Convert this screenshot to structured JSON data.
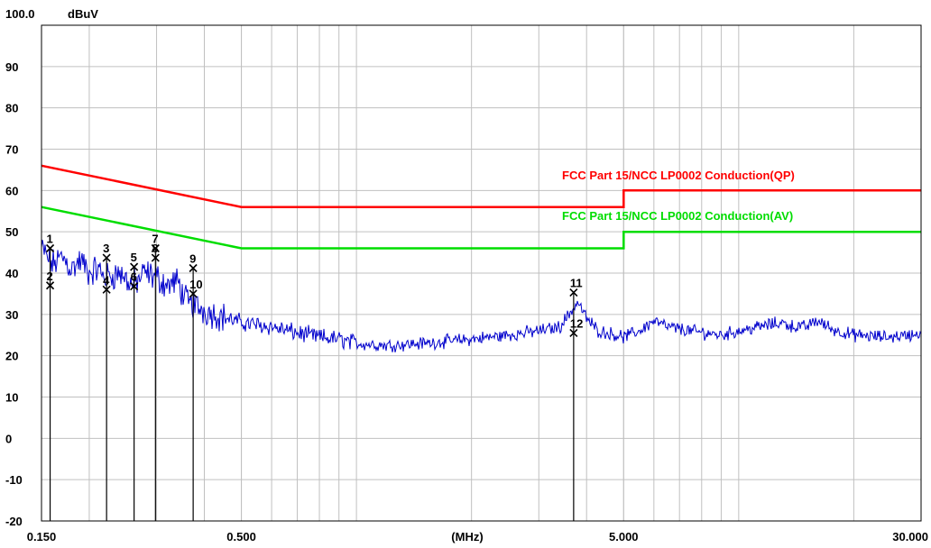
{
  "chart_data": {
    "type": "line",
    "y_top_label": "100.0",
    "y_unit": "dBuV",
    "x_unit": "(MHz)",
    "x_scale": "log",
    "xlim": [
      0.15,
      30.0
    ],
    "ylim": [
      -20,
      100
    ],
    "grid": true,
    "y_ticks": [
      "90",
      "80",
      "70",
      "60",
      "50",
      "40",
      "30",
      "20",
      "10",
      "0",
      "-10",
      "-20"
    ],
    "x_tick_labels": [
      {
        "value": 0.15,
        "label": "0.150"
      },
      {
        "value": 0.5,
        "label": "0.500"
      },
      {
        "value": 5.0,
        "label": "5.000"
      },
      {
        "value": 30.0,
        "label": "30.000"
      }
    ],
    "series": [
      {
        "name": "FCC Part 15/NCC LP0002 Conduction(QP)",
        "color": "#ff0000",
        "points": [
          [
            0.15,
            66
          ],
          [
            0.5,
            56
          ],
          [
            5.0,
            56
          ],
          [
            5.0,
            60
          ],
          [
            30.0,
            60
          ]
        ]
      },
      {
        "name": "FCC Part 15/NCC LP0002 Conduction(AV)",
        "color": "#00dd00",
        "points": [
          [
            0.15,
            56
          ],
          [
            0.5,
            46
          ],
          [
            5.0,
            46
          ],
          [
            5.0,
            50
          ],
          [
            30.0,
            50
          ]
        ]
      },
      {
        "color": "#0000cc",
        "envelope": [
          [
            0.15,
            46
          ],
          [
            0.16,
            42
          ],
          [
            0.17,
            44
          ],
          [
            0.18,
            41
          ],
          [
            0.19,
            43
          ],
          [
            0.2,
            40
          ],
          [
            0.21,
            41
          ],
          [
            0.22,
            39
          ],
          [
            0.24,
            40
          ],
          [
            0.26,
            37
          ],
          [
            0.28,
            40
          ],
          [
            0.3,
            39
          ],
          [
            0.32,
            37
          ],
          [
            0.34,
            38
          ],
          [
            0.36,
            33
          ],
          [
            0.38,
            32
          ],
          [
            0.4,
            31
          ],
          [
            0.43,
            30
          ],
          [
            0.46,
            29
          ],
          [
            0.5,
            28
          ],
          [
            0.55,
            27.5
          ],
          [
            0.6,
            27
          ],
          [
            0.7,
            25.5
          ],
          [
            0.8,
            24.5
          ],
          [
            0.9,
            24
          ],
          [
            1.0,
            23
          ],
          [
            1.2,
            22.5
          ],
          [
            1.5,
            23
          ],
          [
            2.0,
            24
          ],
          [
            2.5,
            25
          ],
          [
            3.0,
            26
          ],
          [
            3.4,
            27
          ],
          [
            3.8,
            33
          ],
          [
            4.0,
            29
          ],
          [
            4.3,
            26
          ],
          [
            4.8,
            25
          ],
          [
            5.0,
            24.5
          ],
          [
            5.5,
            26
          ],
          [
            6.0,
            28.5
          ],
          [
            6.5,
            27
          ],
          [
            7.5,
            26
          ],
          [
            9.0,
            25
          ],
          [
            10.0,
            26
          ],
          [
            12.0,
            27.5
          ],
          [
            13.0,
            28
          ],
          [
            14.0,
            27
          ],
          [
            15.0,
            27
          ],
          [
            16.0,
            28.5
          ],
          [
            18.0,
            26
          ],
          [
            20.0,
            25
          ],
          [
            24.0,
            24.5
          ],
          [
            28.0,
            25
          ],
          [
            30.0,
            25.5
          ]
        ]
      }
    ],
    "markers": [
      {
        "id": "1",
        "freq": 0.158,
        "level": 46.0
      },
      {
        "id": "2",
        "freq": 0.158,
        "level": 37.0
      },
      {
        "id": "3",
        "freq": 0.222,
        "level": 43.7
      },
      {
        "id": "4",
        "freq": 0.222,
        "level": 36.0
      },
      {
        "id": "5",
        "freq": 0.262,
        "level": 41.5
      },
      {
        "id": "6",
        "freq": 0.262,
        "level": 36.8
      },
      {
        "id": "7",
        "freq": 0.298,
        "level": 46.0
      },
      {
        "id": "8",
        "freq": 0.298,
        "level": 43.7
      },
      {
        "id": "9",
        "freq": 0.374,
        "level": 41.2
      },
      {
        "id": "10",
        "freq": 0.374,
        "level": 35.0
      },
      {
        "id": "11",
        "freq": 3.7,
        "level": 35.3
      },
      {
        "id": "12",
        "freq": 3.7,
        "level": 25.5
      }
    ]
  }
}
